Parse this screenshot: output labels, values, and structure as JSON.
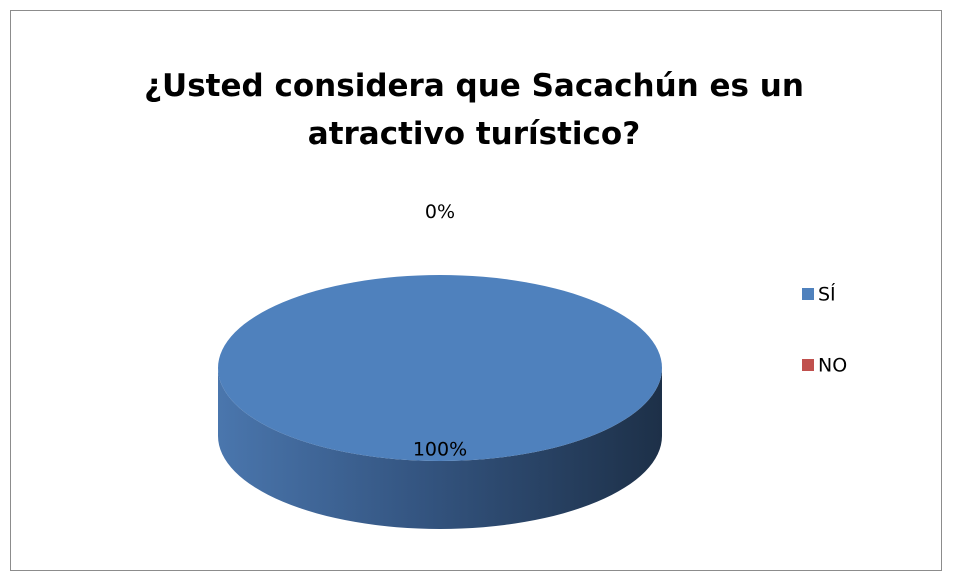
{
  "chart_data": {
    "type": "pie",
    "title": "¿Usted considera que Sacachún es un atractivo turístico?",
    "categories": [
      "SÍ",
      "NO"
    ],
    "values": [
      100,
      0
    ],
    "value_labels": [
      "100%",
      "0%"
    ],
    "colors": [
      "#4f81bd",
      "#c0504d"
    ],
    "legend": "right"
  }
}
